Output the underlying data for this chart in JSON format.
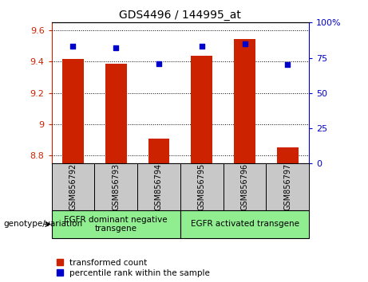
{
  "title": "GDS4496 / 144995_at",
  "samples": [
    "GSM856792",
    "GSM856793",
    "GSM856794",
    "GSM856795",
    "GSM856796",
    "GSM856797"
  ],
  "transformed_count": [
    9.42,
    9.385,
    8.91,
    9.44,
    9.545,
    8.855
  ],
  "percentile_rank": [
    83,
    82,
    71,
    83,
    85,
    70
  ],
  "ylim_left": [
    8.75,
    9.65
  ],
  "ylim_right": [
    0,
    100
  ],
  "yticks_left": [
    8.8,
    9.0,
    9.2,
    9.4,
    9.6
  ],
  "yticks_right": [
    0,
    25,
    50,
    75,
    100
  ],
  "ytick_labels_left": [
    "8.8",
    "9",
    "9.2",
    "9.4",
    "9.6"
  ],
  "ytick_labels_right": [
    "0",
    "25",
    "50",
    "75",
    "100%"
  ],
  "groups": [
    {
      "label": "EGFR dominant negative\ntransgene",
      "color": "#90EE90"
    },
    {
      "label": "EGFR activated transgene",
      "color": "#90EE90"
    }
  ],
  "bar_color": "#CC2200",
  "dot_color": "#0000CC",
  "bar_width": 0.5,
  "background_label": "#C8C8C8",
  "legend_red_label": "transformed count",
  "legend_blue_label": "percentile rank within the sample",
  "left_axis_color": "#CC2200",
  "right_axis_color": "#0000CC",
  "genotype_label": "genotype/variation"
}
